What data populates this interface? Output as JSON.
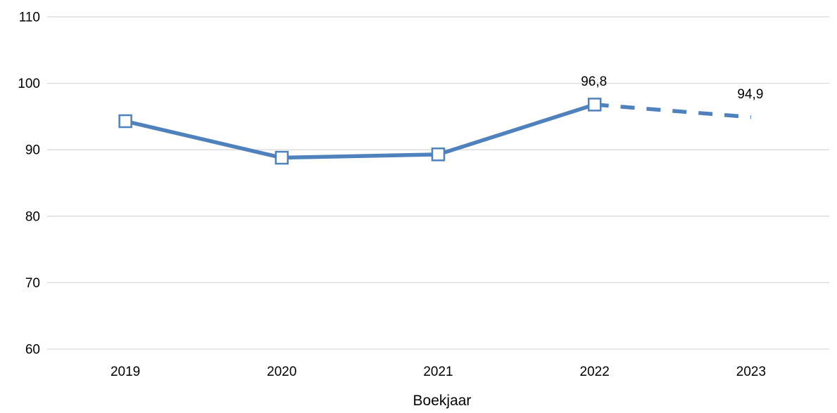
{
  "chart_data": {
    "type": "line",
    "categories": [
      "2019",
      "2020",
      "2021",
      "2022",
      "2023"
    ],
    "series": [
      {
        "values": [
          94.3,
          88.8,
          89.3,
          96.8,
          94.9
        ],
        "style": "solid through 2022, dashed from 2022 to 2023",
        "marker": "open-square",
        "color": "#4F81BD"
      }
    ],
    "data_labels": [
      {
        "category": "2022",
        "value": "96,8"
      },
      {
        "category": "2023",
        "value": "94,9"
      }
    ],
    "y_ticks": [
      "60",
      "70",
      "80",
      "90",
      "100",
      "110"
    ],
    "ylim": [
      60,
      110
    ],
    "xlabel": "Boekjaar",
    "ylabel": "",
    "title": "",
    "grid": true,
    "legend": "none",
    "colors": {
      "line": "#4F81BD",
      "grid": "#D9D9D9",
      "marker_fill": "#FFFFFF"
    }
  }
}
